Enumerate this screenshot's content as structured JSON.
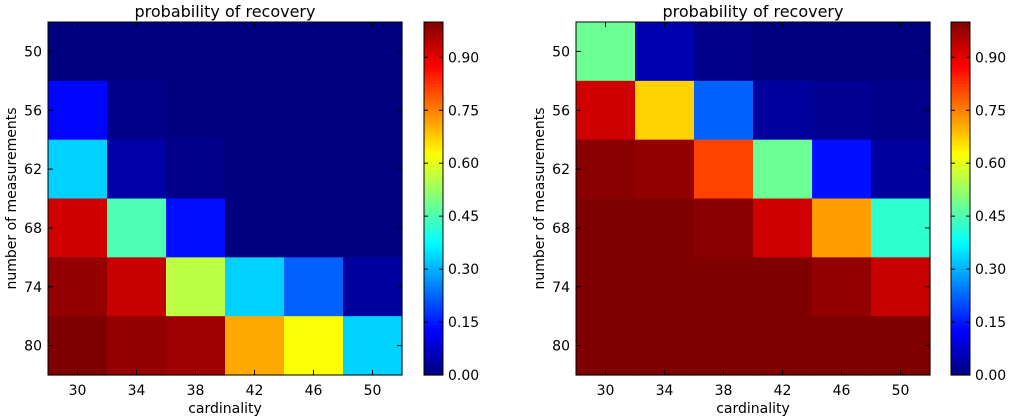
{
  "chart_data": [
    {
      "type": "heatmap",
      "title": "probability of recovery",
      "xlabel": "cardinality",
      "ylabel": "number of measurements",
      "x": [
        "30",
        "34",
        "38",
        "42",
        "46",
        "50"
      ],
      "y": [
        "50",
        "56",
        "62",
        "68",
        "74",
        "80"
      ],
      "values": [
        [
          0.0,
          0.0,
          0.0,
          0.0,
          0.0,
          0.0
        ],
        [
          0.13,
          0.01,
          0.0,
          0.0,
          0.0,
          0.0
        ],
        [
          0.33,
          0.04,
          0.01,
          0.0,
          0.0,
          0.0
        ],
        [
          0.92,
          0.45,
          0.14,
          0.0,
          0.0,
          0.0
        ],
        [
          0.98,
          0.93,
          0.56,
          0.33,
          0.22,
          0.03
        ],
        [
          1.0,
          0.98,
          0.97,
          0.71,
          0.62,
          0.33
        ]
      ],
      "colorbar": {
        "min": 0.0,
        "max": 1.0,
        "colormap": "jet",
        "ticks": [
          "0.00",
          "0.15",
          "0.30",
          "0.45",
          "0.60",
          "0.75",
          "0.90"
        ]
      }
    },
    {
      "type": "heatmap",
      "title": "probability of recovery",
      "xlabel": "cardinality",
      "ylabel": "number of measurements",
      "x": [
        "30",
        "34",
        "38",
        "42",
        "46",
        "50"
      ],
      "y": [
        "50",
        "56",
        "62",
        "68",
        "74",
        "80"
      ],
      "values": [
        [
          0.48,
          0.05,
          0.01,
          0.0,
          0.0,
          0.0
        ],
        [
          0.92,
          0.67,
          0.22,
          0.03,
          0.02,
          0.01
        ],
        [
          0.99,
          0.98,
          0.81,
          0.48,
          0.14,
          0.03
        ],
        [
          1.0,
          1.0,
          0.99,
          0.92,
          0.72,
          0.42
        ],
        [
          1.0,
          1.0,
          1.0,
          1.0,
          0.98,
          0.93
        ],
        [
          1.0,
          1.0,
          1.0,
          1.0,
          1.0,
          1.0
        ]
      ],
      "colorbar": {
        "min": 0.0,
        "max": 1.0,
        "colormap": "jet",
        "ticks": [
          "0.00",
          "0.15",
          "0.30",
          "0.45",
          "0.60",
          "0.75",
          "0.90"
        ]
      }
    }
  ]
}
